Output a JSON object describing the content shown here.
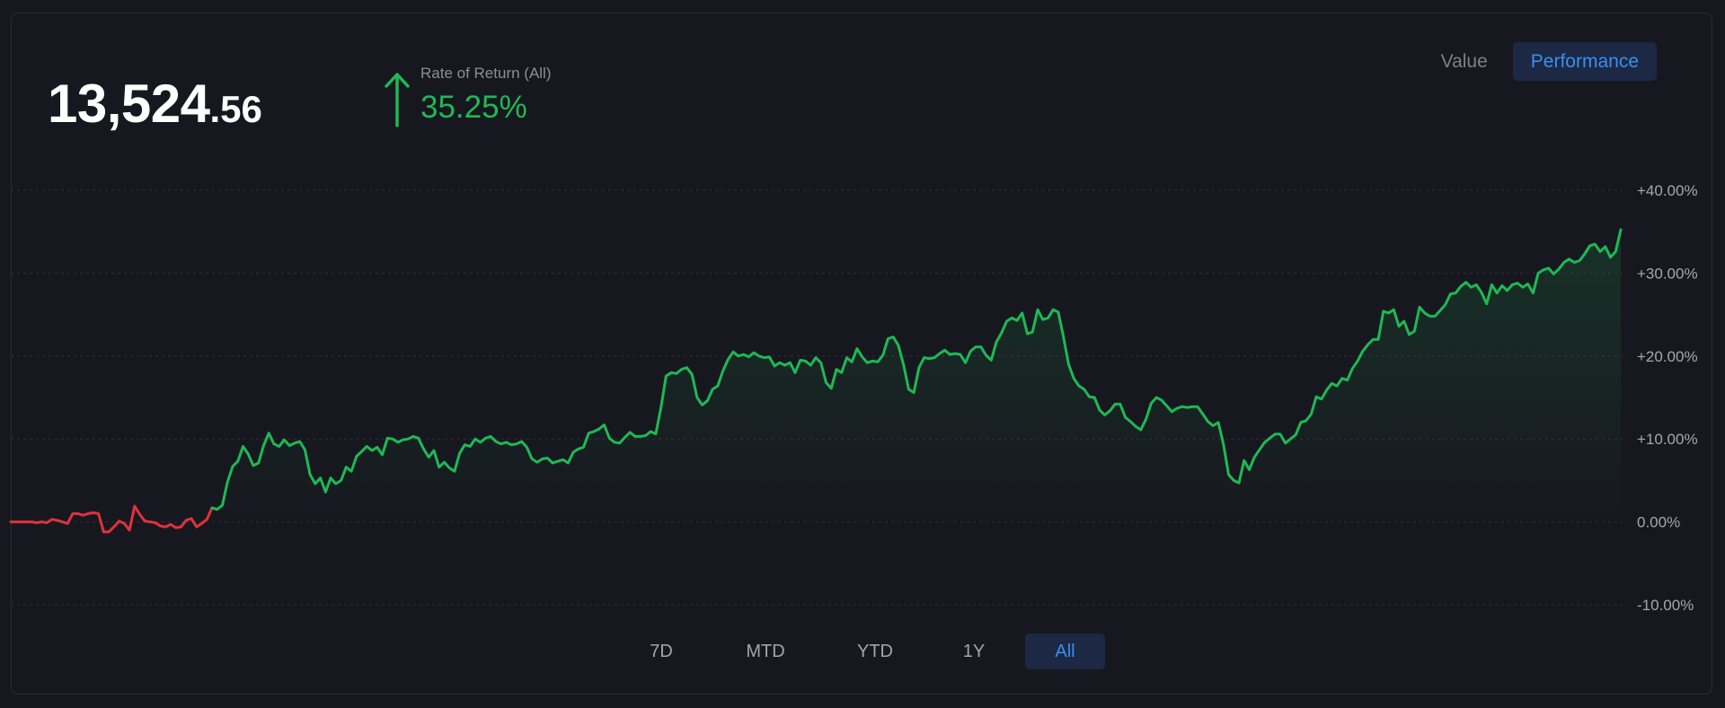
{
  "balance": {
    "integer": "13,524",
    "decimal": ".56"
  },
  "rate_of_return": {
    "label": "Rate of Return (All)",
    "value": "35.25%"
  },
  "view_toggle": {
    "value_label": "Value",
    "performance_label": "Performance",
    "selected": "Performance"
  },
  "range_buttons": [
    {
      "label": "7D"
    },
    {
      "label": "MTD"
    },
    {
      "label": "YTD"
    },
    {
      "label": "1Y"
    },
    {
      "label": "All",
      "active": true
    }
  ],
  "colors": {
    "positive": "#1fb855",
    "negative": "#e0323d",
    "accent": "#3a8ff0",
    "background": "#17181f"
  },
  "icons": {
    "trend": "arrow-up-icon"
  },
  "chart_data": {
    "type": "area",
    "title": "",
    "xlabel": "",
    "ylabel": "",
    "ylim": [
      -10,
      40
    ],
    "y_ticks": [
      "+40.00%",
      "+30.00%",
      "+20.00%",
      "+10.00%",
      "0.00%",
      "-10.00%"
    ],
    "y_tick_values": [
      40,
      30,
      20,
      10,
      0,
      -10
    ],
    "grid": true,
    "series": [
      {
        "values": [
          0,
          0,
          0,
          0,
          0,
          -0.1,
          0,
          -0.1,
          0.3,
          0.2,
          0,
          -0.2,
          1,
          1,
          0.8,
          1,
          1.1,
          1,
          -1.2,
          -1.2,
          -0.6,
          0.1,
          -0.2,
          -1,
          1.9,
          0.9,
          0.1,
          0,
          -0.1,
          -0.5,
          -0.6,
          -0.3,
          -0.7,
          -0.6,
          0.2,
          0.4,
          -0.6,
          -0.2,
          0.3,
          1.7,
          1.5,
          2,
          4.8,
          6.7,
          7.3,
          9.1,
          8.2,
          6.8,
          7.1,
          9.2,
          10.7,
          9.4,
          9.1,
          9.9,
          9.2,
          9.5,
          9.7,
          8.7,
          5.7,
          4.6,
          5.3,
          3.6,
          5.3,
          4.6,
          5,
          6.6,
          6.1,
          7.9,
          8.5,
          9.1,
          8.6,
          9,
          8.1,
          10.1,
          10,
          9.6,
          9.9,
          10,
          10.3,
          10.1,
          8.8,
          7.8,
          8.6,
          6.6,
          7.2,
          6.5,
          6.1,
          8.3,
          9.3,
          9.1,
          10,
          9.6,
          10.1,
          10.3,
          9.7,
          9.4,
          9.6,
          9.3,
          9.4,
          9.7,
          9,
          7.6,
          7.2,
          7.6,
          7.7,
          7.1,
          7.3,
          7.5,
          7.1,
          8.4,
          8.8,
          9,
          10.7,
          10.9,
          11.2,
          11.7,
          10.1,
          9.6,
          9.5,
          10.2,
          10.8,
          10.3,
          10.3,
          10.4,
          10.9,
          10.6,
          13.8,
          17.6,
          18,
          17.9,
          18.4,
          18.6,
          17.8,
          15,
          14.1,
          14.6,
          16,
          16.4,
          18.2,
          19.6,
          20.5,
          20,
          20.2,
          19.9,
          20.4,
          20,
          19.8,
          19.9,
          18.8,
          19.2,
          18.9,
          19.2,
          18,
          19.5,
          19.4,
          18.9,
          19.8,
          19.2,
          16.8,
          16.1,
          18.4,
          18,
          19.8,
          19.3,
          20.9,
          19.9,
          19.2,
          19.4,
          19.3,
          20.1,
          22.1,
          22.3,
          21.3,
          19,
          16,
          15.6,
          18.6,
          19.8,
          19.7,
          19.8,
          20.3,
          20.7,
          20.2,
          20.3,
          20.2,
          19.2,
          20.6,
          21.1,
          21.1,
          20.1,
          19.5,
          21.7,
          22.8,
          24.2,
          24.6,
          24.3,
          25.2,
          22.7,
          22.9,
          25.6,
          24.4,
          24.6,
          25.6,
          25.3,
          22.3,
          19,
          17.3,
          16.4,
          16,
          15.1,
          15,
          13.5,
          12.9,
          13.4,
          14.2,
          14.2,
          12.6,
          12.1,
          11.5,
          11.1,
          12.4,
          14.3,
          15,
          14.7,
          14,
          13.3,
          13.7,
          13.9,
          13.8,
          13.9,
          13.9,
          13,
          12.1,
          11.6,
          12,
          9.4,
          5.7,
          5,
          4.7,
          7.4,
          6.3,
          7.8,
          8.7,
          9.6,
          10.1,
          10.6,
          10.6,
          9.5,
          10,
          10.5,
          12,
          12.2,
          13,
          15.1,
          14.8,
          15.9,
          16.7,
          16.4,
          17.3,
          17.1,
          18.5,
          19.4,
          20.6,
          21.4,
          22,
          22,
          25.4,
          25.2,
          25.6,
          23.6,
          24.2,
          22.6,
          23,
          25.9,
          25.2,
          24.8,
          24.8,
          25.5,
          26.2,
          27.5,
          27.6,
          28.4,
          28.9,
          28.3,
          28.6,
          27.7,
          26.3,
          28.6,
          27.6,
          28.5,
          27.9,
          28.6,
          28.8,
          28.3,
          28.7,
          27.6,
          30,
          30.4,
          30.6,
          29.9,
          30.5,
          31.3,
          31.7,
          31.3,
          31.5,
          32.3,
          33.3,
          33.5,
          32.6,
          33.2,
          31.9,
          32.6,
          35.25
        ],
        "negative_until_index": 39
      }
    ]
  }
}
